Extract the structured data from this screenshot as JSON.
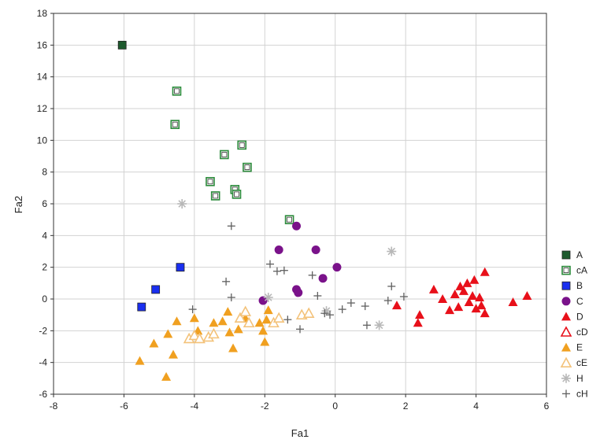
{
  "chart_data": {
    "type": "scatter",
    "xlabel": "Fa1",
    "ylabel": "Fa2",
    "xlim": [
      -8,
      6
    ],
    "ylim": [
      -6,
      18
    ],
    "x_ticks": [
      "-8",
      "-6",
      "-4",
      "-2",
      "0",
      "2",
      "4",
      "6"
    ],
    "y_ticks": [
      "-6",
      "-4",
      "-2",
      "0",
      "2",
      "4",
      "6",
      "8",
      "10",
      "12",
      "14",
      "16",
      "18"
    ],
    "grid": true,
    "legend_position": "right",
    "series": [
      {
        "name": "A",
        "marker": "square-filled",
        "color": "#1e5a2e",
        "points": [
          [
            -6.05,
            16.0
          ]
        ]
      },
      {
        "name": "cA",
        "marker": "square-open",
        "color": "#2a8a3a",
        "points": [
          [
            -4.5,
            13.1
          ],
          [
            -4.55,
            11.0
          ],
          [
            -3.15,
            9.1
          ],
          [
            -2.65,
            9.7
          ],
          [
            -2.5,
            8.3
          ],
          [
            -3.55,
            7.4
          ],
          [
            -3.4,
            6.5
          ],
          [
            -2.85,
            6.9
          ],
          [
            -2.8,
            6.6
          ],
          [
            -1.3,
            5.0
          ]
        ]
      },
      {
        "name": "B",
        "marker": "square-filled",
        "color": "#1a2ff0",
        "points": [
          [
            -4.4,
            2.0
          ],
          [
            -5.1,
            0.6
          ],
          [
            -5.5,
            -0.5
          ]
        ]
      },
      {
        "name": "C",
        "marker": "circle-filled",
        "color": "#7a128a",
        "points": [
          [
            -1.1,
            4.6
          ],
          [
            -1.6,
            3.1
          ],
          [
            -0.55,
            3.1
          ],
          [
            0.05,
            2.0
          ],
          [
            -0.35,
            1.3
          ],
          [
            -1.1,
            0.6
          ],
          [
            -1.05,
            0.4
          ],
          [
            -2.05,
            -0.1
          ]
        ]
      },
      {
        "name": "D",
        "marker": "triangle-filled",
        "color": "#e8101a",
        "points": [
          [
            1.75,
            -0.4
          ],
          [
            2.4,
            -1.0
          ],
          [
            2.35,
            -1.5
          ],
          [
            2.8,
            0.6
          ],
          [
            3.05,
            0.0
          ],
          [
            3.25,
            -0.7
          ],
          [
            3.4,
            0.3
          ],
          [
            3.5,
            -0.5
          ],
          [
            3.55,
            0.8
          ],
          [
            3.65,
            0.5
          ],
          [
            3.75,
            1.0
          ],
          [
            3.8,
            -0.2
          ],
          [
            3.9,
            0.2
          ],
          [
            3.95,
            1.2
          ],
          [
            4.0,
            -0.6
          ],
          [
            4.1,
            0.1
          ],
          [
            4.15,
            -0.4
          ],
          [
            4.25,
            -0.9
          ],
          [
            4.25,
            1.7
          ],
          [
            5.05,
            -0.2
          ],
          [
            5.45,
            0.2
          ]
        ]
      },
      {
        "name": "cD",
        "marker": "triangle-open",
        "color": "#e8101a",
        "points": []
      },
      {
        "name": "E",
        "marker": "triangle-filled",
        "color": "#f0a020",
        "points": [
          [
            -5.55,
            -3.9
          ],
          [
            -5.15,
            -2.8
          ],
          [
            -4.8,
            -4.9
          ],
          [
            -4.75,
            -2.2
          ],
          [
            -4.5,
            -1.4
          ],
          [
            -4.6,
            -3.5
          ],
          [
            -4.0,
            -1.2
          ],
          [
            -3.9,
            -2.0
          ],
          [
            -3.45,
            -1.5
          ],
          [
            -3.2,
            -1.4
          ],
          [
            -3.05,
            -0.8
          ],
          [
            -3.0,
            -2.1
          ],
          [
            -2.9,
            -3.1
          ],
          [
            -2.75,
            -1.9
          ],
          [
            -2.55,
            -1.2
          ],
          [
            -2.15,
            -1.5
          ],
          [
            -2.05,
            -2.0
          ],
          [
            -2.0,
            -2.7
          ],
          [
            -1.95,
            -1.3
          ],
          [
            -1.9,
            -0.7
          ]
        ]
      },
      {
        "name": "cE",
        "marker": "triangle-open",
        "color": "#f3c27a",
        "points": [
          [
            -4.15,
            -2.5
          ],
          [
            -4.0,
            -2.3
          ],
          [
            -3.85,
            -2.5
          ],
          [
            -3.6,
            -2.4
          ],
          [
            -3.45,
            -2.2
          ],
          [
            -2.7,
            -1.2
          ],
          [
            -2.55,
            -0.8
          ],
          [
            -2.45,
            -1.5
          ],
          [
            -1.75,
            -1.5
          ],
          [
            -1.6,
            -1.2
          ],
          [
            -0.95,
            -1.0
          ],
          [
            -0.75,
            -0.9
          ]
        ]
      },
      {
        "name": "H",
        "marker": "asterisk",
        "color": "#b8b8b8",
        "points": [
          [
            -4.35,
            6.0
          ],
          [
            1.6,
            3.0
          ],
          [
            1.25,
            -1.65
          ],
          [
            -0.25,
            -0.75
          ],
          [
            -1.9,
            0.1
          ]
        ]
      },
      {
        "name": "cH",
        "marker": "plus",
        "color": "#606060",
        "points": [
          [
            -2.95,
            4.6
          ],
          [
            -1.85,
            2.2
          ],
          [
            -1.65,
            1.75
          ],
          [
            -1.45,
            1.8
          ],
          [
            -3.1,
            1.1
          ],
          [
            -2.95,
            0.1
          ],
          [
            -4.05,
            -0.65
          ],
          [
            -1.35,
            -1.3
          ],
          [
            -1.0,
            -1.9
          ],
          [
            -0.65,
            1.5
          ],
          [
            -0.5,
            0.2
          ],
          [
            -0.3,
            -0.9
          ],
          [
            -0.15,
            -1.0
          ],
          [
            0.2,
            -0.65
          ],
          [
            0.45,
            -0.25
          ],
          [
            0.85,
            -0.45
          ],
          [
            0.9,
            -1.65
          ],
          [
            1.5,
            -0.1
          ],
          [
            1.6,
            0.8
          ],
          [
            1.95,
            0.15
          ]
        ]
      }
    ]
  }
}
